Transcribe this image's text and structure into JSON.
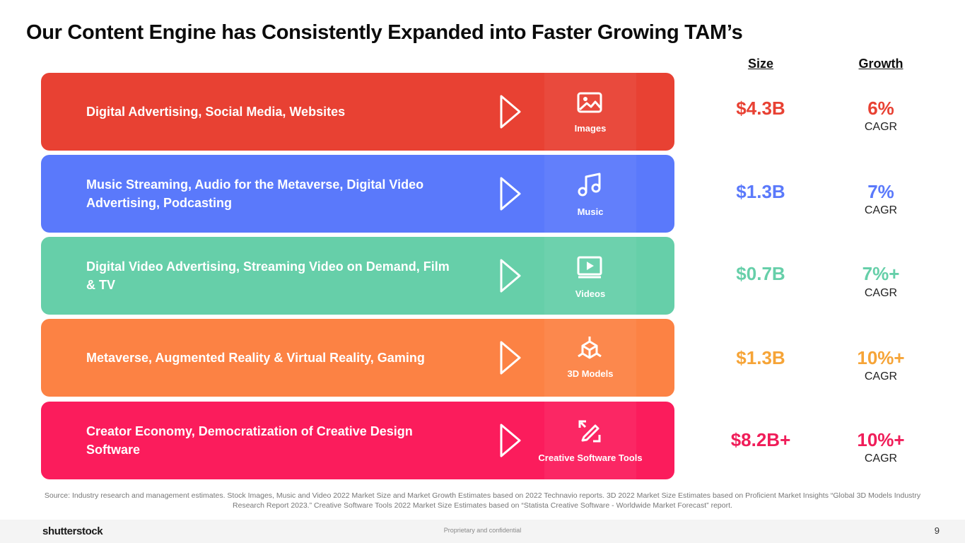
{
  "title": "Our Content Engine has Consistently Expanded into Faster Growing TAM’s",
  "headers": {
    "size": "Size",
    "growth": "Growth"
  },
  "rows": [
    {
      "description": "Digital Advertising, Social Media, Websites",
      "category": "Images",
      "icon": "image-icon",
      "color": "#E84133",
      "size": "$4.3B",
      "size_color": "#E84133",
      "growth": "6%",
      "growth_color": "#E84133",
      "growth_unit": "CAGR"
    },
    {
      "description": "Music Streaming, Audio for the Metaverse, Digital Video Advertising, Podcasting",
      "category": "Music",
      "icon": "music-note-icon",
      "color": "#5A79FB",
      "size": "$1.3B",
      "size_color": "#5A79FB",
      "growth": "7%",
      "growth_color": "#5A79FB",
      "growth_unit": "CAGR"
    },
    {
      "description": "Digital Video Advertising, Streaming Video on Demand, Film & TV",
      "category": "Videos",
      "icon": "video-play-icon",
      "color": "#66CFA9",
      "size": "$0.7B",
      "size_color": "#66CFA9",
      "growth": "7%+",
      "growth_color": "#66CFA9",
      "growth_unit": "CAGR"
    },
    {
      "description": "Metaverse, Augmented Reality & Virtual Reality, Gaming",
      "category": "3D Models",
      "icon": "cube-3d-icon",
      "color": "#FC8244",
      "size": "$1.3B",
      "size_color": "#F6A437",
      "growth": "10%+",
      "growth_color": "#F6A437",
      "growth_unit": "CAGR"
    },
    {
      "description": "Creator Economy, Democratization of Creative Design Software",
      "category": "Creative Software Tools",
      "icon": "design-tool-icon",
      "color": "#FB1C5C",
      "size": "$8.2B+",
      "size_color": "#F01D59",
      "growth": "10%+",
      "growth_color": "#F01D59",
      "growth_unit": "CAGR"
    }
  ],
  "source": "Source: Industry research and management estimates. Stock Images, Music and Video 2022 Market Size and Market Growth Estimates based on 2022 Technavio reports. 3D 2022 Market Size Estimates based on Proficient Market Insights “Global 3D Models Industry Research Report 2023.” Creative Software Tools 2022 Market Size Estimates based on “Statista Creative Software - Worldwide Market Forecast” report.",
  "footer": {
    "logo": "shutterstock",
    "confidential": "Proprietary and confidential",
    "page": "9"
  }
}
